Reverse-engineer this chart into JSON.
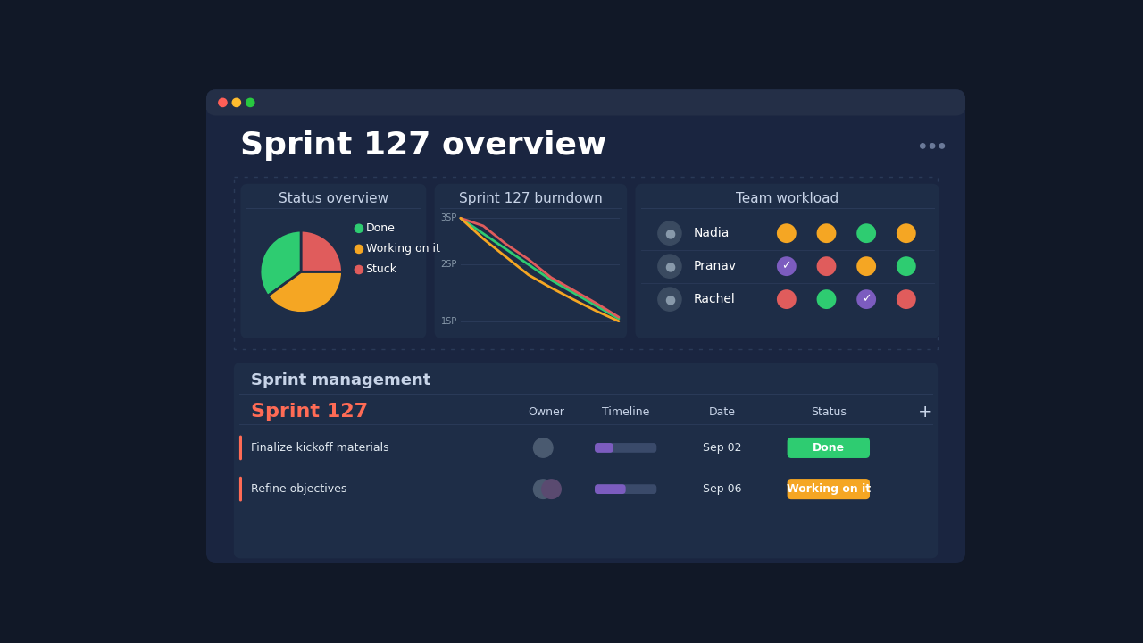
{
  "bg_color": "#111827",
  "window_bg": "#1a2540",
  "titlebar_color": "#242f47",
  "card_bg": "#1a2540",
  "inner_card_bg": "#1e2d47",
  "title": "Sprint 127 overview",
  "title_color": "#ffffff",
  "title_fontsize": 26,
  "dots_color": "#6b7a99",
  "section_title_color": "#c8d4e8",
  "status_overview_title": "Status overview",
  "burndown_title": "Sprint 127 burndown",
  "team_workload_title": "Team workload",
  "sprint_mgmt_title": "Sprint management",
  "sprint_name": "Sprint 127",
  "sprint_name_color": "#ff6b55",
  "pie_colors": [
    "#2ecc71",
    "#f5a623",
    "#e05c5c"
  ],
  "pie_sizes": [
    35,
    40,
    25
  ],
  "pie_labels": [
    "Done",
    "Working on it",
    "Stuck"
  ],
  "pie_label_colors": [
    "#2ecc71",
    "#f5a623",
    "#e05c5c"
  ],
  "burndown_color_green": "#2ecc71",
  "burndown_color_red": "#e05c5c",
  "burndown_color_yellow": "#f5a623",
  "team_members": [
    "Nadia",
    "Pranav",
    "Rachel"
  ],
  "team_dots": [
    [
      "#f5a623",
      "#f5a623",
      "#2ecc71",
      "#f5a623"
    ],
    [
      "#7c5cbf",
      "#e05c5c",
      "#f5a623",
      "#2ecc71"
    ],
    [
      "#e05c5c",
      "#2ecc71",
      "#7c5cbf",
      "#e05c5c"
    ]
  ],
  "team_dot_check": [
    [
      false,
      false,
      false,
      false
    ],
    [
      true,
      false,
      false,
      false
    ],
    [
      false,
      false,
      true,
      false
    ]
  ],
  "status_done_color": "#2ecc71",
  "status_working_color": "#f5a623",
  "timeline_bar_bg": "#3a4a6a",
  "timeline_bar_fg": "#7c5cbf",
  "sprint_left_bar_color": "#ff6b55",
  "dashed_border_color": "#2a3a58",
  "grid_line_color": "#2a3a58",
  "divider_color": "#2a3a58",
  "row_bg_alt": "#1e2d47"
}
